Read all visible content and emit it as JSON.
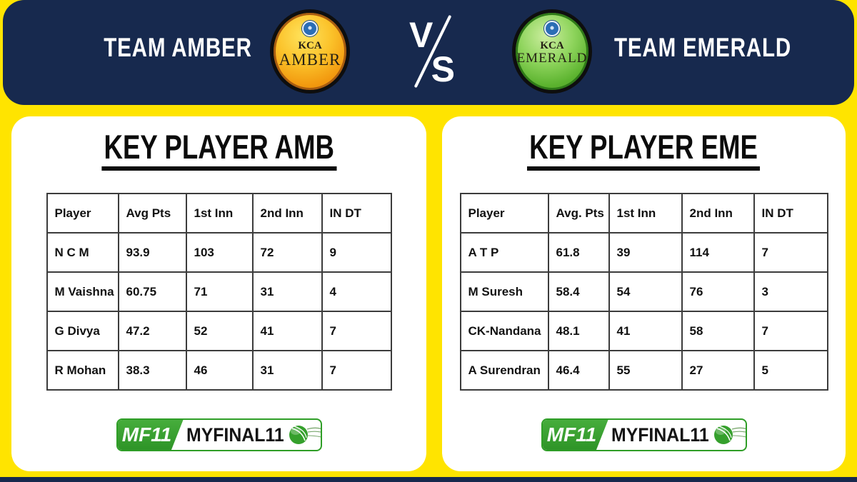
{
  "banner": {
    "team1": "TEAM AMBER",
    "team2": "TEAM EMERALD",
    "vs": "VS",
    "badge1": {
      "org": "KCA",
      "name": "AMBER"
    },
    "badge2": {
      "org": "KCA",
      "name": "EMERALD"
    }
  },
  "chart_data": [
    {
      "type": "table",
      "title": "KEY PLAYER AMB",
      "columns": [
        "Player",
        "Avg Pts",
        "1st Inn",
        "2nd Inn",
        "IN DT"
      ],
      "rows": [
        [
          "N C M",
          "93.9",
          "103",
          "72",
          "9"
        ],
        [
          "M Vaishna",
          "60.75",
          "71",
          "31",
          "4"
        ],
        [
          "G Divya",
          "47.2",
          "52",
          "41",
          "7"
        ],
        [
          "R Mohan",
          "38.3",
          "46",
          "31",
          "7"
        ]
      ]
    },
    {
      "type": "table",
      "title": "KEY PLAYER EME",
      "columns": [
        "Player",
        "Avg. Pts",
        "1st Inn",
        "2nd Inn",
        "IN DT"
      ],
      "rows": [
        [
          "A T P",
          "61.8",
          "39",
          "114",
          "7"
        ],
        [
          "M Suresh",
          "58.4",
          "54",
          "76",
          "3"
        ],
        [
          "CK-Nandana",
          "48.1",
          "41",
          "58",
          "7"
        ],
        [
          "A Surendran",
          "46.4",
          "55",
          "27",
          "5"
        ]
      ]
    }
  ],
  "brand": {
    "abbr": "MF11",
    "name": "MYFINAL11"
  },
  "colors": {
    "background": "#FFE400",
    "banner_navy": "#17294E",
    "card_white": "#FFFFFF",
    "brand_green": "#2F9E27",
    "amber_badge": "#F2990F",
    "emerald_badge": "#5CB32F",
    "table_border": "#3C3C3C",
    "text": "#111111"
  }
}
